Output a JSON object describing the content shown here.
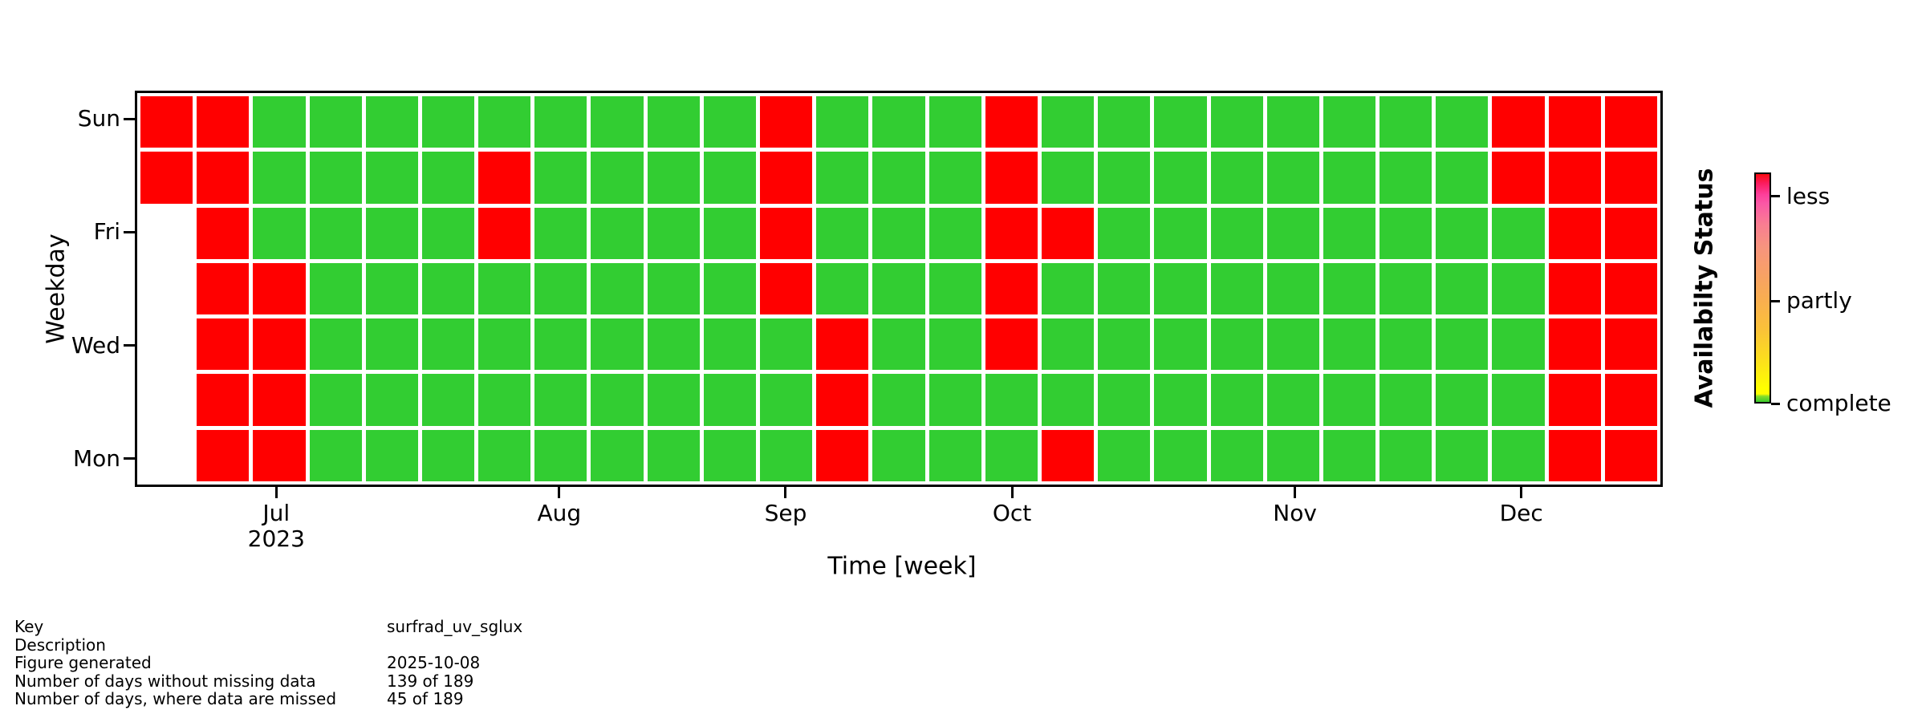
{
  "chart_data": {
    "type": "heatmap",
    "title": "",
    "xlabel": "Time [week]",
    "ylabel": "Weekday",
    "n_cols": 27,
    "n_rows": 7,
    "rows_top_to_bottom": [
      "Sun",
      "Sat",
      "Fri",
      "Thu",
      "Wed",
      "Tue",
      "Mon"
    ],
    "y_ticks": [
      {
        "label": "Sun",
        "row": 0
      },
      {
        "label": "Fri",
        "row": 2
      },
      {
        "label": "Wed",
        "row": 4
      },
      {
        "label": "Mon",
        "row": 6
      }
    ],
    "x_ticks": [
      {
        "label": "Jul",
        "sublabel": "2023",
        "col": 2
      },
      {
        "label": "Aug",
        "col": 7
      },
      {
        "label": "Sep",
        "col": 11
      },
      {
        "label": "Oct",
        "col": 15
      },
      {
        "label": "Nov",
        "col": 20
      },
      {
        "label": "Dec",
        "col": 24
      }
    ],
    "colors": {
      "G": "#32cd32",
      "R": "#ff0000",
      "W": "transparent",
      "background": "#ffffff"
    },
    "columns": [
      "RRWWWWW",
      "RRRRRRR",
      "GGGRRRR",
      "GGGGGGG",
      "GGGGGGG",
      "GGGGGGG",
      "GRRGGGG",
      "GGGGGGG",
      "GGGGGGG",
      "GGGGGGG",
      "GGGGGGG",
      "RRRRGGG",
      "GGGGRRR",
      "GGGGGGG",
      "GGGGGGG",
      "RRRRRGG",
      "GGRGGGR",
      "GGGGGGG",
      "GGGGGGG",
      "GGGGGGG",
      "GGGGGGG",
      "GGGGGGG",
      "GGGGGGG",
      "GGGGGGG",
      "RRGGGGG",
      "RRRRRRR",
      "RRRRRRR"
    ],
    "colorbar": {
      "title": "Availabilty Status",
      "tick_labels": [
        "less",
        "partly",
        "complete"
      ],
      "tick_positions_pct": [
        10.4,
        55.6,
        100
      ],
      "gradient_stops": [
        [
          0,
          "#fa0a10"
        ],
        [
          4,
          "#fb1c5e"
        ],
        [
          9,
          "#fd3f9b"
        ],
        [
          13,
          "#fb58a5"
        ],
        [
          22,
          "#f97d92"
        ],
        [
          32,
          "#f7947e"
        ],
        [
          45,
          "#f8a263"
        ],
        [
          55,
          "#f9ae50"
        ],
        [
          68,
          "#fac139"
        ],
        [
          80,
          "#fcdb20"
        ],
        [
          90,
          "#fdf40a"
        ],
        [
          94,
          "#ffff00"
        ],
        [
          96.5,
          "#ffff00"
        ],
        [
          97.5,
          "#86dd2a"
        ],
        [
          100,
          "#3acb2d"
        ]
      ],
      "legend_position": "right"
    },
    "grid": false
  },
  "info_table": {
    "rows": [
      {
        "label": "Key",
        "value": "surfrad_uv_sglux"
      },
      {
        "label": "Description",
        "value": ""
      },
      {
        "label": "Figure generated",
        "value": "2025-10-08"
      },
      {
        "label": "Number of days without missing data",
        "value": "139 of 189"
      },
      {
        "label": "Number of days, where data are missed",
        "value": "45 of 189"
      }
    ]
  }
}
